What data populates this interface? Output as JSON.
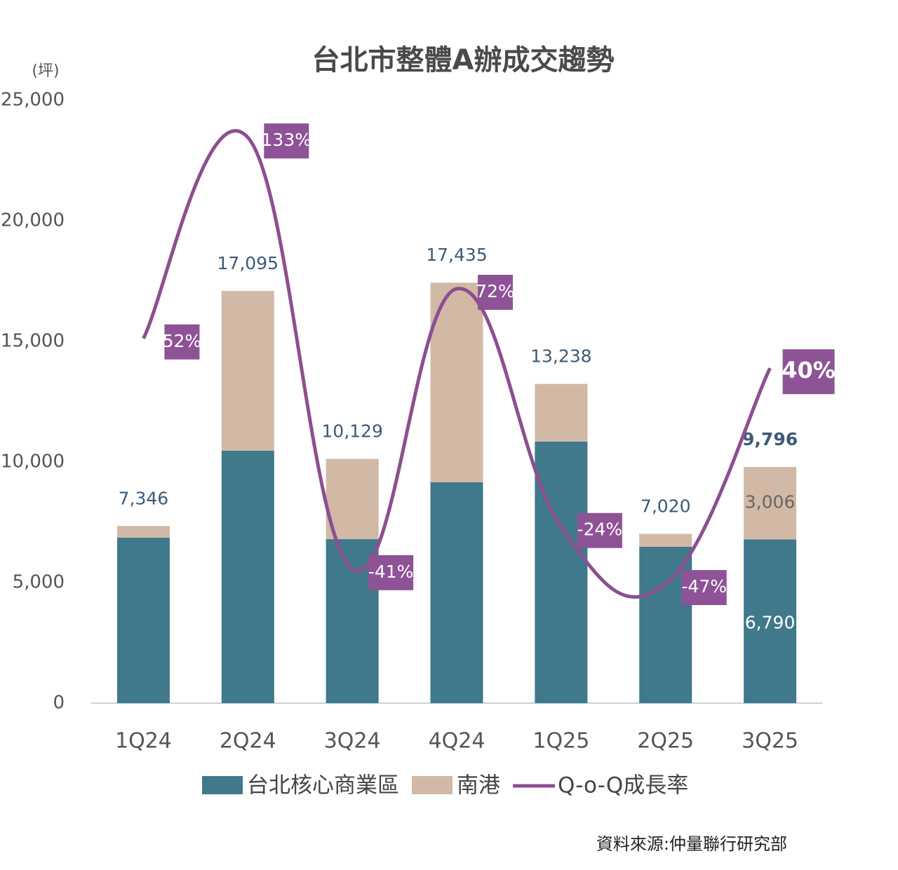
{
  "chart_data": {
    "type": "bar-line",
    "title": "台北市整體A辦成交趨勢",
    "y_label": "(坪)",
    "source": "資料來源:仲量聯行研究部",
    "categories": [
      "1Q24",
      "2Q24",
      "3Q24",
      "4Q24",
      "1Q25",
      "2Q25",
      "3Q25"
    ],
    "series": [
      {
        "name": "台北核心商業區",
        "color": "#40788c",
        "stacked": true,
        "values": [
          6860,
          10465,
          6800,
          9157,
          10843,
          6483,
          6790
        ],
        "value_labels": [
          null,
          null,
          null,
          null,
          null,
          null,
          "6,790"
        ]
      },
      {
        "name": "南港",
        "color": "#d1b9a6",
        "stacked": true,
        "values": [
          486,
          6630,
          3329,
          8278,
          2395,
          537,
          3006
        ],
        "value_labels": [
          null,
          null,
          null,
          null,
          null,
          null,
          "3,006"
        ]
      },
      {
        "name": "Q-o-Q成長率",
        "color": "#8c4f91",
        "axis": "y2",
        "values": [
          52,
          133,
          -41,
          72,
          -24,
          -47,
          40
        ],
        "value_labels": [
          "52%",
          "133%",
          "-41%",
          "72%",
          "-24%",
          "-47%",
          "40%"
        ]
      }
    ],
    "totals": {
      "values": [
        7346,
        17095,
        10129,
        17435,
        13238,
        7020,
        9796
      ],
      "value_labels": [
        "7,346",
        "17,095",
        "10,129",
        "17,435",
        "13,238",
        "7,020",
        "9,796"
      ]
    },
    "ylim": [
      0,
      25000
    ],
    "yticks": [
      0,
      {
        "value": 5000,
        "label": "5,000"
      },
      {
        "value": 10000,
        "label": "10,000"
      },
      {
        "value": 15000,
        "label": "15,000"
      },
      {
        "value": 20000,
        "label": "20,000"
      },
      {
        "value": 25000,
        "label": "25,000"
      }
    ],
    "y2lim": [
      -95,
      148
    ],
    "grid": false
  }
}
